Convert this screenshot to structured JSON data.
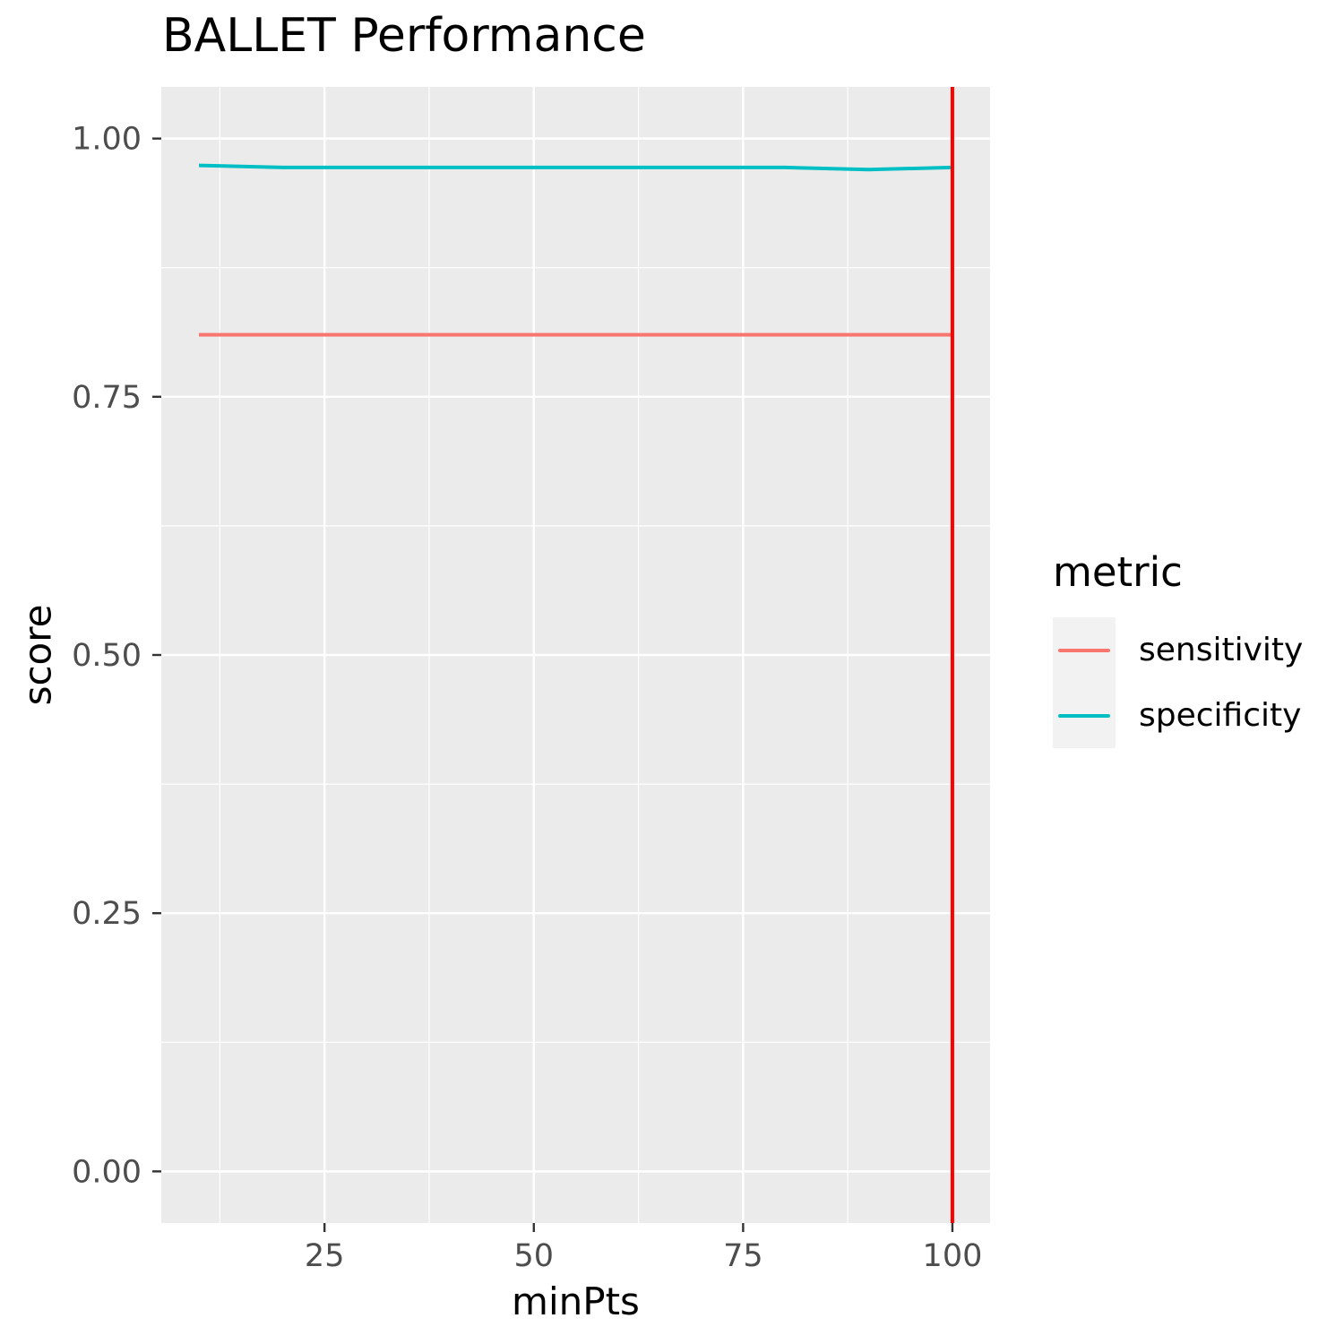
{
  "title": "BALLET Performance",
  "axes": {
    "x_title": "minPts",
    "y_title": "score"
  },
  "legend": {
    "title": "metric",
    "entries": [
      {
        "label": "sensitivity",
        "color": "#F8766D"
      },
      {
        "label": "specificity",
        "color": "#00BFC4"
      }
    ]
  },
  "chart_data": {
    "type": "line",
    "title": "BALLET Performance",
    "xlabel": "minPts",
    "ylabel": "score",
    "xlim": [
      5.5,
      104.5
    ],
    "ylim": [
      -0.05,
      1.05
    ],
    "x_ticks": [
      25,
      50,
      75,
      100
    ],
    "x_tick_labels": [
      "25",
      "50",
      "75",
      "100"
    ],
    "x_minor_ticks": [
      12.5,
      37.5,
      62.5,
      87.5
    ],
    "y_ticks": [
      0.0,
      0.25,
      0.5,
      0.75,
      1.0
    ],
    "y_tick_labels": [
      "0.00",
      "0.25",
      "0.50",
      "0.75",
      "1.00"
    ],
    "y_minor_ticks": [
      0.125,
      0.375,
      0.625,
      0.875
    ],
    "grid": true,
    "legend_position": "right",
    "panel_bg": "#EBEBEB",
    "grid_color": "#FFFFFF",
    "tick_color": "#333333",
    "tick_label_color": "#4D4D4D",
    "series": [
      {
        "name": "sensitivity",
        "color": "#F8766D",
        "x": [
          10,
          25,
          50,
          75,
          100
        ],
        "y": [
          0.81,
          0.81,
          0.81,
          0.81,
          0.81
        ]
      },
      {
        "name": "specificity",
        "color": "#00BFC4",
        "x": [
          10,
          20,
          50,
          80,
          90,
          100
        ],
        "y": [
          0.974,
          0.972,
          0.972,
          0.972,
          0.97,
          0.972
        ]
      }
    ],
    "vline": {
      "x": 100,
      "color": "#FF0000"
    }
  }
}
